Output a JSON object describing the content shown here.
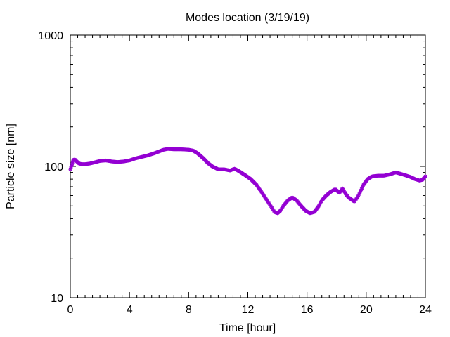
{
  "chart_data": {
    "type": "scatter",
    "title": "Modes location (3/19/19)",
    "xlabel": "Time [hour]",
    "ylabel": "Particle size [nm]",
    "xlim": [
      0,
      24
    ],
    "ylim": [
      10,
      1000
    ],
    "yscale": "log",
    "x_ticks": [
      "0",
      "4",
      "8",
      "12",
      "16",
      "20",
      "24"
    ],
    "y_ticks": [
      "10",
      "100",
      "1000"
    ],
    "grid": false,
    "marker": "star",
    "color": "#9400D3",
    "series": [
      {
        "x": [
          0.0,
          0.1,
          0.2,
          0.3,
          0.4,
          0.6,
          0.8,
          1.0,
          1.3,
          1.6,
          2.0,
          2.4,
          2.8,
          3.2,
          3.6,
          4.0,
          4.4,
          4.8,
          5.2,
          5.6,
          6.0,
          6.3,
          6.6,
          7.0,
          7.5,
          8.0,
          8.3,
          8.6,
          9.0,
          9.3,
          9.6,
          10.0,
          10.4,
          10.8,
          11.1,
          11.4,
          11.8,
          12.2,
          12.6,
          13.0,
          13.3,
          13.6,
          13.8,
          14.0,
          14.2,
          14.4,
          14.7,
          15.0,
          15.3,
          15.6,
          15.9,
          16.2,
          16.5,
          16.8,
          17.0,
          17.3,
          17.6,
          17.9,
          18.2,
          18.4,
          18.6,
          18.8,
          19.0,
          19.2,
          19.4,
          19.6,
          19.8,
          20.1,
          20.4,
          20.8,
          21.2,
          21.6,
          22.0,
          22.3,
          22.6,
          23.0,
          23.3,
          23.6,
          23.8,
          24.0
        ],
        "y": [
          95,
          102,
          112,
          113,
          110,
          105,
          104,
          104,
          105,
          107,
          110,
          111,
          109,
          108,
          109,
          111,
          115,
          118,
          121,
          125,
          130,
          134,
          136,
          135,
          135,
          134,
          132,
          126,
          115,
          106,
          100,
          95,
          95,
          93,
          96,
          92,
          86,
          80,
          72,
          62,
          55,
          49,
          45,
          44,
          46,
          50,
          55,
          58,
          55,
          50,
          46,
          44,
          45,
          50,
          55,
          60,
          64,
          67,
          63,
          68,
          62,
          58,
          56,
          54,
          58,
          64,
          72,
          80,
          84,
          85,
          85,
          87,
          90,
          88,
          86,
          83,
          80,
          78,
          79,
          84
        ]
      }
    ]
  }
}
